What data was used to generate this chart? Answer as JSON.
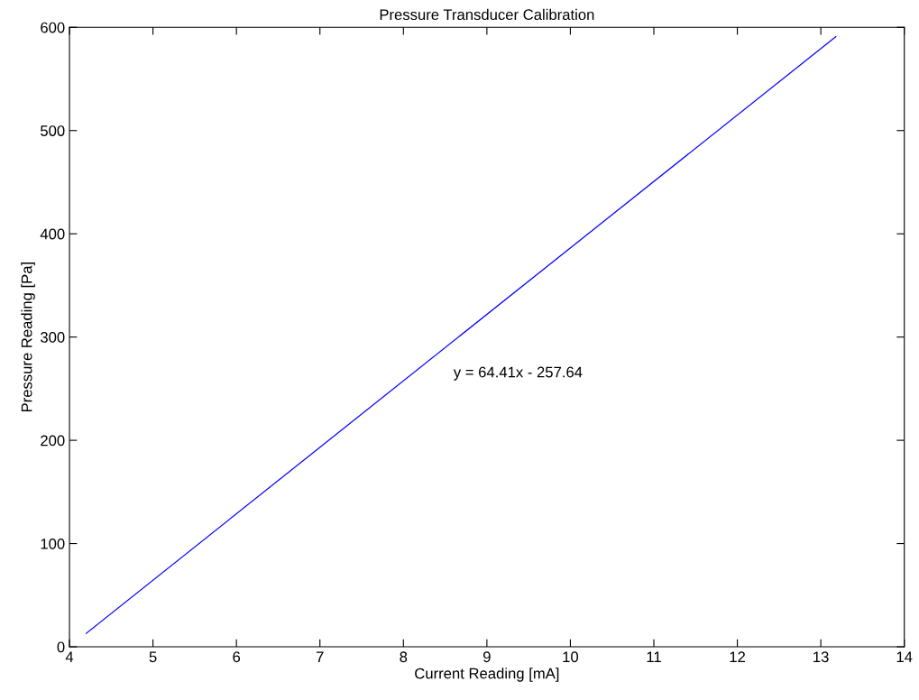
{
  "chart_data": {
    "type": "line",
    "title": "Pressure Transducer Calibration",
    "xlabel": "Current Reading [mA]",
    "ylabel": "Pressure Reading [Pa]",
    "series": [
      {
        "color": "#0000ff",
        "x": [
          4.2,
          13.18
        ],
        "values": [
          13,
          591
        ]
      }
    ],
    "xlim": [
      4,
      14
    ],
    "xticks": [
      4,
      5,
      6,
      7,
      8,
      9,
      10,
      11,
      12,
      13,
      14
    ],
    "ylim": [
      0,
      600
    ],
    "yticks": [
      0,
      100,
      200,
      300,
      400,
      500,
      600
    ],
    "annotations": [
      "y = 64.41x - 257.64"
    ],
    "grid": false,
    "legend": false,
    "marker": "none",
    "line_style": "solid"
  }
}
